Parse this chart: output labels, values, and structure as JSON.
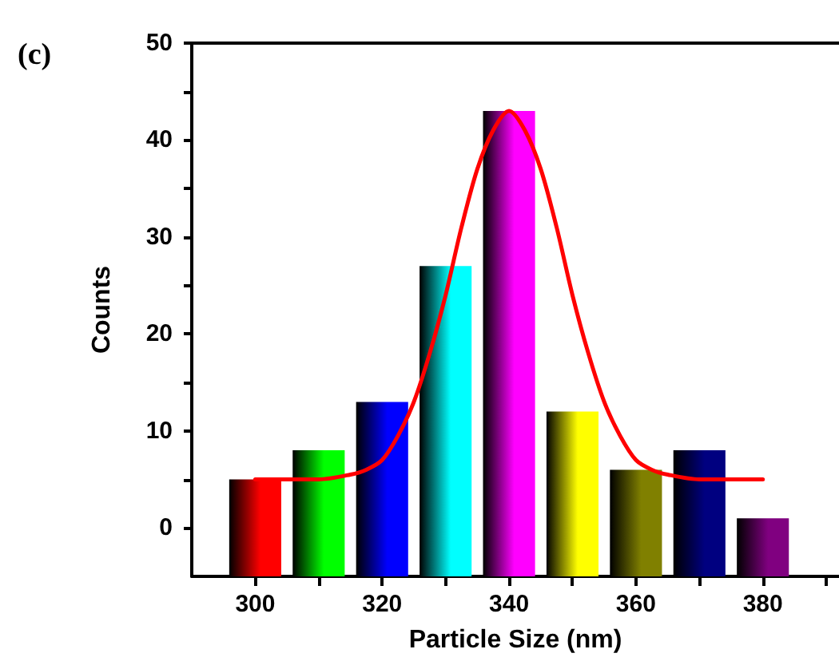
{
  "chart_data": {
    "type": "bar",
    "title": "(c)",
    "xlabel": "Particle Size (nm)",
    "ylabel": "Counts",
    "x": [
      300,
      310,
      320,
      330,
      340,
      350,
      360,
      370,
      380
    ],
    "base": [
      -5,
      -5,
      -5,
      -5,
      -5,
      -5,
      -5,
      -5,
      -5
    ],
    "values": [
      10,
      13,
      18,
      32,
      48,
      17,
      11,
      13,
      6
    ],
    "colors": [
      "#ff0000",
      "#00ff00",
      "#0000ff",
      "#00ffff",
      "#ff00ff",
      "#ffff00",
      "#808000",
      "#000080",
      "#800080"
    ],
    "series": [
      {
        "type": "line",
        "color": "#ff0000",
        "x": [
          300,
          310,
          315,
          317.5,
          320,
          322.5,
          325,
          327.5,
          330,
          332.5,
          335,
          337.5,
          340,
          342.5,
          345,
          347.5,
          350,
          352.5,
          355,
          357.5,
          360,
          362.5,
          365,
          370,
          380
        ],
        "values": [
          5,
          5,
          5.5,
          6,
          7,
          9.5,
          13,
          18,
          24,
          31,
          37,
          41,
          43,
          41,
          37,
          31,
          24,
          18,
          13,
          9.5,
          7,
          6,
          5.5,
          5,
          5
        ]
      }
    ],
    "xlim": [
      290,
      392
    ],
    "xticks": [
      300,
      {
        "value": 310,
        "label": null
      },
      320,
      {
        "value": 330,
        "label": null
      },
      340,
      {
        "value": 350,
        "label": null
      },
      360,
      {
        "value": 370,
        "label": null
      },
      380,
      {
        "value": 390,
        "label": null
      }
    ],
    "ylim": [
      -5,
      50
    ],
    "yticks": [
      0,
      {
        "value": 5,
        "label": null
      },
      10,
      {
        "value": 15,
        "label": null
      },
      20,
      {
        "value": 25,
        "label": null
      },
      30,
      {
        "value": 35,
        "label": null
      },
      40,
      {
        "value": 45,
        "label": null
      },
      50
    ],
    "grid": false,
    "marker": "none",
    "line_style": "solid"
  }
}
